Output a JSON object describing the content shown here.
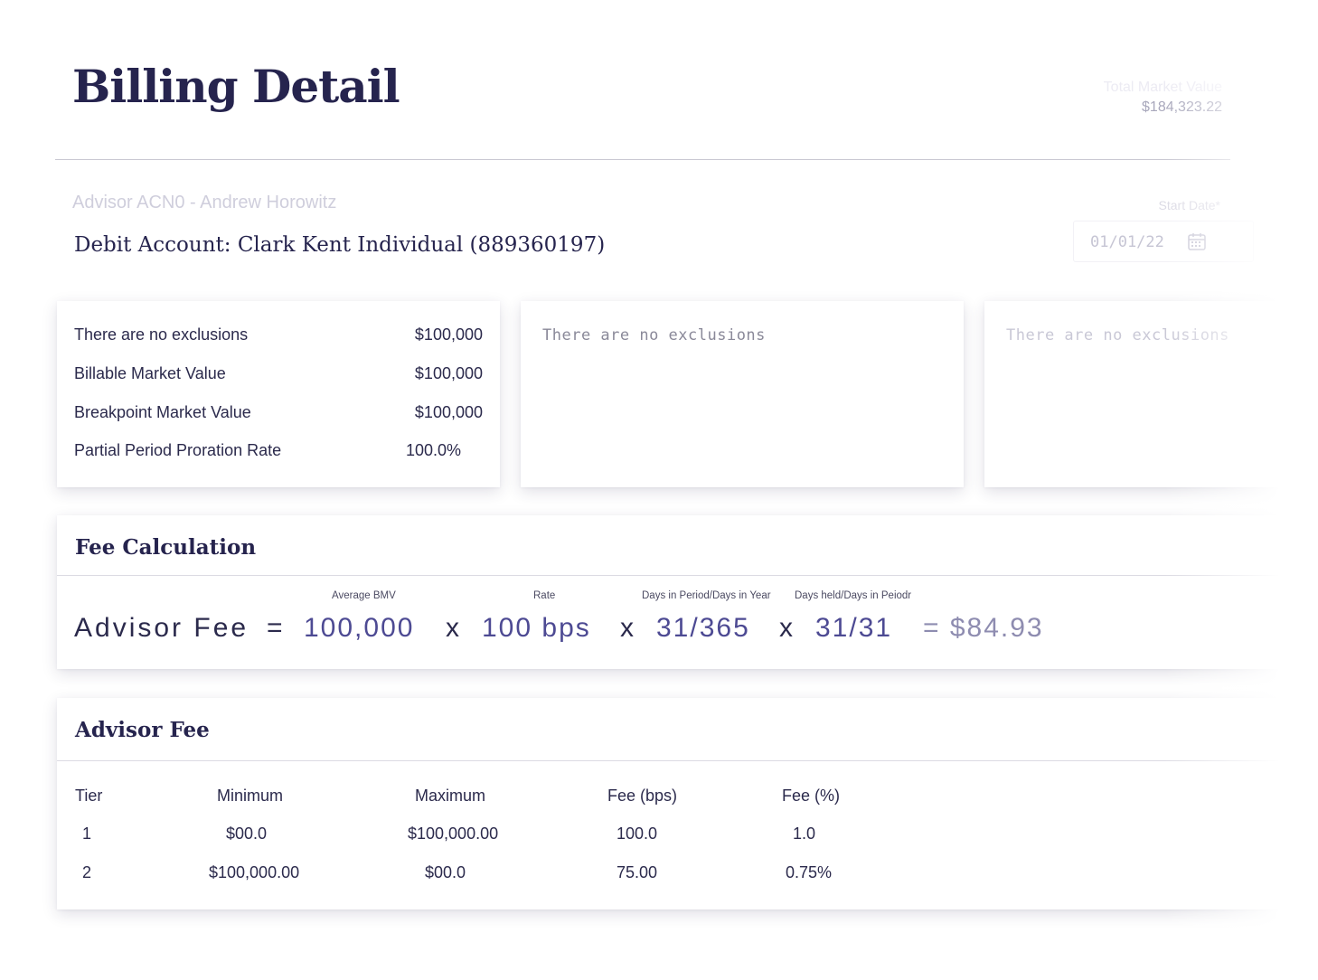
{
  "header": {
    "title": "Billing Detail",
    "total_market_value_label": "Total Market Value",
    "total_market_value": "$184,323.22"
  },
  "account": {
    "advisor": "Advisor ACN0 - Andrew Horowitz",
    "debit_account": "Debit Account: Clark Kent Individual (889360197)"
  },
  "date_filter": {
    "label": "Start Date*",
    "value": "01/01/22",
    "icon": "calendar-icon"
  },
  "summary": {
    "rows": [
      {
        "label": "There are no exclusions",
        "value": "$100,000"
      },
      {
        "label": "Billable Market Value",
        "value": "$100,000"
      },
      {
        "label": "Breakpoint Market Value",
        "value": "$100,000"
      },
      {
        "label": "Partial Period Proration Rate",
        "value": "100.0%"
      }
    ]
  },
  "exclusions": [
    {
      "text": "There are no exclusions"
    },
    {
      "text": "There are no exclusions"
    }
  ],
  "fee_calculation": {
    "title": "Fee Calculation",
    "label": "Advisor Fee",
    "equals": "=",
    "times": "x",
    "terms": [
      {
        "caption": "Average BMV",
        "value": "100,000"
      },
      {
        "caption": "Rate",
        "value": "100 bps"
      },
      {
        "caption": "Days in Period/Days in Year",
        "value": "31/365"
      },
      {
        "caption": "Days held/Days in Peiodr",
        "value": "31/31"
      }
    ],
    "result": "= $84.93"
  },
  "advisor_fee": {
    "title": "Advisor Fee",
    "columns": [
      "Tier",
      "Minimum",
      "Maximum",
      "Fee (bps)",
      "Fee (%)"
    ],
    "rows": [
      [
        "1",
        "$00.0",
        "$100,000.00",
        "100.0",
        "1.0"
      ],
      [
        "2",
        "$100,000.00",
        "$00.0",
        "75.00",
        "0.75%"
      ]
    ]
  }
}
